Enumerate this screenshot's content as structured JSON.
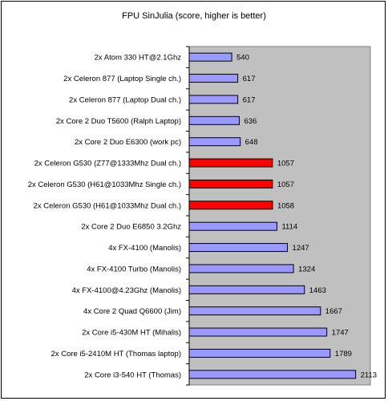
{
  "chart_data": {
    "type": "bar",
    "orientation": "horizontal",
    "title": "FPU SinJulia (score, higher is better)",
    "xlabel": "",
    "ylabel": "",
    "xlim": [
      0,
      2300
    ],
    "grid": false,
    "legend": "none",
    "colors": {
      "plot_background": "#c0c0c0",
      "default_bar": "#9999ff",
      "highlight_bar": "#ff0000",
      "bar_border": "#000000"
    },
    "categories": [
      "2x Atom 330 HT@2.1Ghz",
      "2x Celeron 877 (Laptop Single ch.)",
      "2x Celeron 877 (Laptop Dual ch.)",
      "2x Core 2 Duo T5600 (Ralph Laptop)",
      "2x Core 2 Duo E6300 (work pc)",
      "2x Celeron G530 (Z77@1333Mhz Dual ch.)",
      "2x Celeron G530 (H61@1033Mhz Single ch.)",
      "2x Celeron G530 (H61@1033Mhz Dual ch.)",
      "2x Core 2 Duo E6850 3.2Ghz",
      "4x FX-4100 (Manolis)",
      "4x FX-4100 Turbo (Manolis)",
      "4x FX-4100@4.23Ghz (Manolis)",
      "4x Core 2 Quad Q6600 (Jim)",
      "2x Core i5-430M HT (Mihalis)",
      "2x Core i5-2410M HT (Thomas laptop)",
      "2x Core i3-540 HT  (Thomas)"
    ],
    "values": [
      540,
      617,
      617,
      636,
      648,
      1057,
      1057,
      1058,
      1114,
      1247,
      1324,
      1463,
      1667,
      1747,
      1789,
      2113
    ],
    "value_labels": [
      "540",
      "617",
      "617",
      "636",
      "648",
      "1057",
      "1057",
      "1058",
      "1114",
      "1247",
      "1324",
      "1463",
      "1667",
      "1747",
      "1789",
      "2113"
    ],
    "highlighted": [
      false,
      false,
      false,
      false,
      false,
      true,
      true,
      true,
      false,
      false,
      false,
      false,
      false,
      false,
      false,
      false
    ]
  }
}
